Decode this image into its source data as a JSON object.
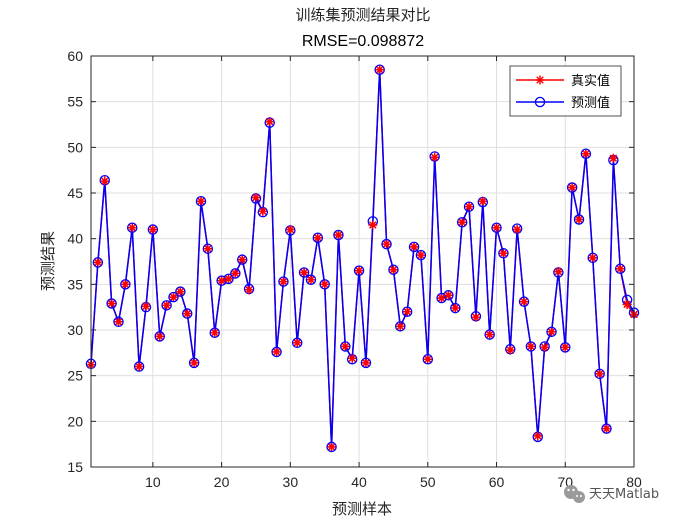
{
  "chart_data": {
    "type": "line",
    "title": "训练集预测结果对比",
    "subtitle": "RMSE=0.098872",
    "xlabel": "预测样本",
    "ylabel": "预测结果",
    "xlim": [
      1,
      80
    ],
    "ylim": [
      15,
      60
    ],
    "xticks": [
      10,
      20,
      30,
      40,
      50,
      60,
      70,
      80
    ],
    "yticks": [
      15,
      20,
      25,
      30,
      35,
      40,
      45,
      50,
      55,
      60
    ],
    "grid": true,
    "legend_position": "top-right",
    "x": [
      1,
      2,
      3,
      4,
      5,
      6,
      7,
      8,
      9,
      10,
      11,
      12,
      13,
      14,
      15,
      16,
      17,
      18,
      19,
      20,
      21,
      22,
      23,
      24,
      25,
      26,
      27,
      28,
      29,
      30,
      31,
      32,
      33,
      34,
      35,
      36,
      37,
      38,
      39,
      40,
      41,
      42,
      43,
      44,
      45,
      46,
      47,
      48,
      49,
      50,
      51,
      52,
      53,
      54,
      55,
      56,
      57,
      58,
      59,
      60,
      61,
      62,
      63,
      64,
      65,
      66,
      67,
      68,
      69,
      70,
      71,
      72,
      73,
      74,
      75,
      76,
      77,
      78,
      79,
      80
    ],
    "series": [
      {
        "name": "真实值",
        "color": "#ff0000",
        "marker": "asterisk",
        "values": [
          26.2,
          37.4,
          46.3,
          32.9,
          30.9,
          35.0,
          41.2,
          26.0,
          32.6,
          41.0,
          29.3,
          32.7,
          33.6,
          34.2,
          31.8,
          26.4,
          44.1,
          38.9,
          29.7,
          35.4,
          35.6,
          36.2,
          37.7,
          34.4,
          44.5,
          43.0,
          52.8,
          27.6,
          35.3,
          41.0,
          28.6,
          36.3,
          35.5,
          40.1,
          35.0,
          17.2,
          40.4,
          28.2,
          26.9,
          36.5,
          26.4,
          41.5,
          58.5,
          39.4,
          36.6,
          30.4,
          32.0,
          39.1,
          38.2,
          26.8,
          48.9,
          33.5,
          33.8,
          32.4,
          41.8,
          43.5,
          31.4,
          44.1,
          29.5,
          41.2,
          38.4,
          27.8,
          41.0,
          33.1,
          28.2,
          18.4,
          28.1,
          29.8,
          36.4,
          28.1,
          45.6,
          42.1,
          49.3,
          37.9,
          25.2,
          19.2,
          48.8,
          36.7,
          32.8,
          31.7
        ]
      },
      {
        "name": "预测值",
        "color": "#0000ff",
        "marker": "circle",
        "values": [
          26.3,
          37.4,
          46.4,
          32.9,
          30.9,
          35.0,
          41.2,
          26.0,
          32.5,
          41.0,
          29.3,
          32.7,
          33.6,
          34.2,
          31.8,
          26.4,
          44.1,
          38.9,
          29.7,
          35.4,
          35.6,
          36.2,
          37.7,
          34.5,
          44.4,
          42.9,
          52.7,
          27.6,
          35.3,
          40.9,
          28.6,
          36.3,
          35.5,
          40.1,
          35.0,
          17.2,
          40.4,
          28.2,
          26.8,
          36.5,
          26.4,
          41.9,
          58.5,
          39.4,
          36.6,
          30.4,
          32.0,
          39.1,
          38.2,
          26.8,
          49.0,
          33.5,
          33.8,
          32.4,
          41.8,
          43.5,
          31.5,
          44.0,
          29.5,
          41.2,
          38.4,
          27.9,
          41.1,
          33.1,
          28.2,
          18.3,
          28.2,
          29.8,
          36.3,
          28.1,
          45.6,
          42.1,
          49.3,
          37.9,
          25.2,
          19.2,
          48.6,
          36.7,
          33.3,
          31.9
        ]
      }
    ]
  },
  "watermark": {
    "text": "天天Matlab",
    "icon": "wechat-icon"
  }
}
